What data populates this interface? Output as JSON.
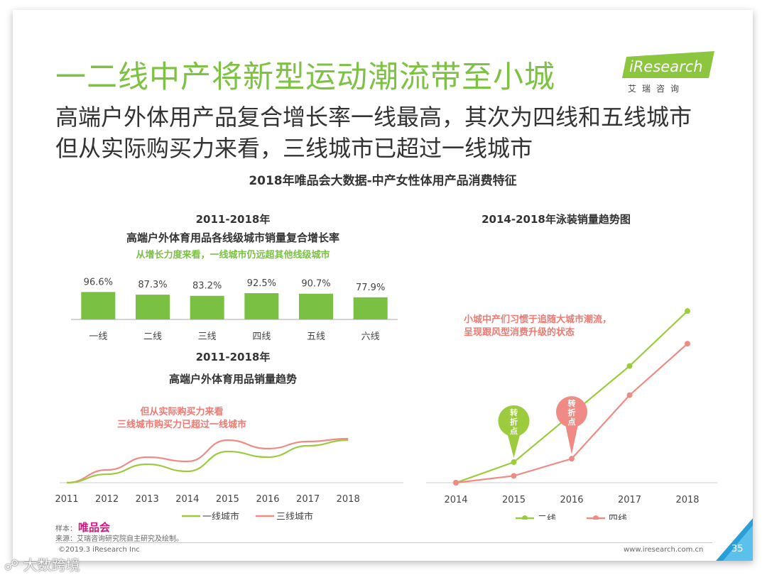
{
  "slide": {
    "title": "一二线中产将新型运动潮流带至小城",
    "subtitle_line1": "高端户外体用产品复合增长率一线最高，其次为四线和五线城市",
    "subtitle_line2": "但从实际购买力来看，三线城市已超过一线城市",
    "section_title": "2018年唯品会大数据-中产女性体用产品消费特征",
    "page_number": "35"
  },
  "logo": {
    "text": "iResearch",
    "subtext": "艾瑞咨询"
  },
  "footer": {
    "sample_label": "样本：",
    "sample_brand": "唯品会",
    "source": "来源：艾瑞咨询研究院自主研究及绘制。",
    "copyright": "©2019.3 iResearch Inc",
    "url": "www.iresearch.com.cn",
    "watermark": "大数跨境"
  },
  "colors": {
    "title_green": "#7dc242",
    "bar_green": "#7ac143",
    "line_green": "#9ccc3d",
    "line_pink": "#f08a84",
    "annotation_pink": "#ee7a72",
    "brand_magenta": "#d6157e"
  },
  "chart_data": [
    {
      "type": "bar",
      "title_line1": "2011-2018年",
      "title_line2": "高端户外体育用品各线级城市销量复合增长率",
      "annotation": "从增长力度来看，一线城市仍远超其他线级城市",
      "categories": [
        "一线",
        "二线",
        "三线",
        "四线",
        "五线",
        "六线"
      ],
      "values": [
        96.6,
        87.3,
        83.2,
        92.5,
        90.7,
        77.9
      ],
      "value_labels": [
        "96.6%",
        "87.3%",
        "83.2%",
        "92.5%",
        "90.7%",
        "77.9%"
      ],
      "unit": "%"
    },
    {
      "type": "line",
      "title_line1": "2011-2018年",
      "title_line2": "高端户外体育用品销量趋势",
      "annotation_line1": "但从实际购买力来看",
      "annotation_line2": "三线城市购买力已超过一线城市",
      "x": [
        "2011",
        "2012",
        "2013",
        "2014",
        "2015",
        "2016",
        "2017",
        "2018"
      ],
      "series": [
        {
          "name": "一线城市",
          "values": [
            0,
            6,
            13,
            8,
            22,
            18,
            26,
            30
          ]
        },
        {
          "name": "三线城市",
          "values": [
            0,
            9,
            18,
            15,
            30,
            24,
            29,
            31
          ]
        }
      ],
      "ylim": [
        0,
        40
      ],
      "note": "relative index, no y-axis labels shown"
    },
    {
      "type": "line",
      "title": "2014-2018年泳装销量趋势图",
      "annotation_line1": "小城中产们习惯于追随大城市潮流，",
      "annotation_line2": "呈现跟风型消费升级的状态",
      "turning_point_label": "转折点",
      "x": [
        "2014",
        "2015",
        "2016",
        "2017",
        "2018"
      ],
      "series": [
        {
          "name": "二线",
          "values": [
            0,
            12,
            40,
            68,
            100
          ]
        },
        {
          "name": "四线",
          "values": [
            0,
            4,
            14,
            51,
            81
          ]
        }
      ],
      "ylim": [
        0,
        110
      ],
      "turning_points": {
        "二线": "2015",
        "四线": "2016"
      },
      "note": "relative index, no y-axis labels shown"
    }
  ]
}
